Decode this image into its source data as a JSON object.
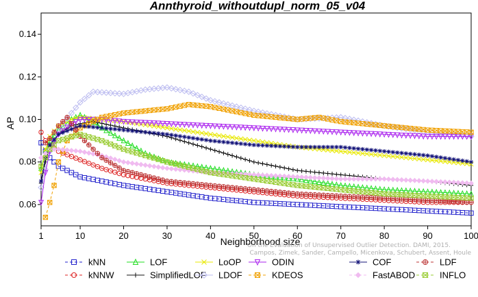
{
  "chart_data": {
    "type": "line",
    "title": "Annthyroid_withoutdupl_norm_05_v04",
    "xlabel": "Neighborhood size",
    "ylabel": "AP",
    "xlim": [
      1,
      100
    ],
    "ylim": [
      0.05,
      0.15
    ],
    "xticks": [
      1,
      10,
      20,
      30,
      40,
      50,
      60,
      70,
      80,
      90,
      100
    ],
    "yticks": [
      0.06,
      0.08,
      0.1,
      0.12,
      0.14
    ],
    "ytick_labels": [
      "0.06",
      "0.08",
      "0.10",
      "0.12",
      "0.14"
    ],
    "watermark": [
      "Campos, Zimek, Sander, Campello, Micenkova, Schubert, Assent, Houle",
      "On the Evaluation of Unsupervised Outlier Detection. DAMI, 2015."
    ],
    "series": [
      {
        "name": "kNN",
        "color": "#2222cc",
        "marker": "square",
        "dash": "4,3",
        "points": [
          [
            1,
            0.089
          ],
          [
            2,
            0.085
          ],
          [
            3,
            0.082
          ],
          [
            5,
            0.078
          ],
          [
            10,
            0.073
          ],
          [
            15,
            0.071
          ],
          [
            20,
            0.069
          ],
          [
            30,
            0.066
          ],
          [
            40,
            0.063
          ],
          [
            50,
            0.061
          ],
          [
            60,
            0.06
          ],
          [
            70,
            0.059
          ],
          [
            80,
            0.058
          ],
          [
            90,
            0.057
          ],
          [
            100,
            0.056
          ]
        ]
      },
      {
        "name": "kNNW",
        "color": "#dd2222",
        "marker": "circle",
        "dash": "4,3",
        "points": [
          [
            1,
            0.094
          ],
          [
            2,
            0.09
          ],
          [
            3,
            0.088
          ],
          [
            5,
            0.085
          ],
          [
            10,
            0.081
          ],
          [
            15,
            0.077
          ],
          [
            20,
            0.074
          ],
          [
            30,
            0.07
          ],
          [
            40,
            0.068
          ],
          [
            50,
            0.066
          ],
          [
            60,
            0.064
          ],
          [
            70,
            0.063
          ],
          [
            80,
            0.062
          ],
          [
            90,
            0.061
          ],
          [
            100,
            0.061
          ]
        ]
      },
      {
        "name": "LOF",
        "color": "#22dd22",
        "marker": "triangle",
        "dash": "",
        "points": [
          [
            1,
            0.077
          ],
          [
            2,
            0.085
          ],
          [
            3,
            0.09
          ],
          [
            5,
            0.095
          ],
          [
            8,
            0.1
          ],
          [
            10,
            0.102
          ],
          [
            12,
            0.1
          ],
          [
            15,
            0.096
          ],
          [
            20,
            0.09
          ],
          [
            25,
            0.084
          ],
          [
            30,
            0.08
          ],
          [
            40,
            0.077
          ],
          [
            50,
            0.074
          ],
          [
            60,
            0.072
          ],
          [
            70,
            0.069
          ],
          [
            80,
            0.067
          ],
          [
            90,
            0.066
          ],
          [
            100,
            0.065
          ]
        ]
      },
      {
        "name": "SimplifiedLOF",
        "color": "#111111",
        "marker": "plus",
        "dash": "",
        "points": [
          [
            1,
            0.07
          ],
          [
            2,
            0.08
          ],
          [
            3,
            0.087
          ],
          [
            5,
            0.093
          ],
          [
            8,
            0.097
          ],
          [
            10,
            0.098
          ],
          [
            13,
            0.099
          ],
          [
            20,
            0.096
          ],
          [
            30,
            0.092
          ],
          [
            40,
            0.086
          ],
          [
            50,
            0.08
          ],
          [
            60,
            0.076
          ],
          [
            70,
            0.074
          ],
          [
            80,
            0.072
          ],
          [
            90,
            0.071
          ],
          [
            100,
            0.069
          ]
        ]
      },
      {
        "name": "LoOP",
        "color": "#e8e800",
        "marker": "cross",
        "dash": "",
        "points": [
          [
            1,
            0.075
          ],
          [
            2,
            0.086
          ],
          [
            3,
            0.092
          ],
          [
            5,
            0.097
          ],
          [
            8,
            0.1
          ],
          [
            10,
            0.101
          ],
          [
            15,
            0.1
          ],
          [
            20,
            0.099
          ],
          [
            30,
            0.096
          ],
          [
            40,
            0.093
          ],
          [
            50,
            0.09
          ],
          [
            60,
            0.087
          ],
          [
            70,
            0.085
          ],
          [
            80,
            0.083
          ],
          [
            90,
            0.081
          ],
          [
            100,
            0.079
          ]
        ]
      },
      {
        "name": "LDOF",
        "color": "#bbbbf0",
        "marker": "diamond",
        "dash": "",
        "points": [
          [
            1,
            0.068
          ],
          [
            3,
            0.085
          ],
          [
            5,
            0.095
          ],
          [
            8,
            0.103
          ],
          [
            10,
            0.108
          ],
          [
            13,
            0.113
          ],
          [
            20,
            0.112
          ],
          [
            25,
            0.114
          ],
          [
            30,
            0.115
          ],
          [
            35,
            0.113
          ],
          [
            40,
            0.109
          ],
          [
            50,
            0.104
          ],
          [
            60,
            0.1
          ],
          [
            70,
            0.101
          ],
          [
            80,
            0.097
          ],
          [
            90,
            0.094
          ],
          [
            100,
            0.092
          ]
        ]
      },
      {
        "name": "ODIN",
        "color": "#aa22ee",
        "marker": "triangle-down",
        "dash": "",
        "points": [
          [
            1,
            0.061
          ],
          [
            2,
            0.075
          ],
          [
            3,
            0.085
          ],
          [
            5,
            0.093
          ],
          [
            8,
            0.098
          ],
          [
            10,
            0.1
          ],
          [
            15,
            0.1
          ],
          [
            20,
            0.099
          ],
          [
            30,
            0.098
          ],
          [
            40,
            0.097
          ],
          [
            50,
            0.096
          ],
          [
            60,
            0.095
          ],
          [
            70,
            0.094
          ],
          [
            80,
            0.093
          ],
          [
            90,
            0.092
          ],
          [
            100,
            0.092
          ]
        ]
      },
      {
        "name": "KDEOS",
        "color": "#f0a000",
        "marker": "boxx",
        "dash": "4,3",
        "points": [
          [
            2,
            0.054
          ],
          [
            3,
            0.061
          ],
          [
            4,
            0.069
          ],
          [
            5,
            0.08
          ],
          [
            7,
            0.09
          ],
          [
            10,
            0.096
          ],
          [
            15,
            0.101
          ],
          [
            20,
            0.103
          ],
          [
            25,
            0.104
          ],
          [
            30,
            0.105
          ],
          [
            35,
            0.107
          ],
          [
            40,
            0.106
          ],
          [
            45,
            0.104
          ],
          [
            50,
            0.102
          ],
          [
            60,
            0.1
          ],
          [
            65,
            0.101
          ],
          [
            70,
            0.099
          ],
          [
            80,
            0.097
          ],
          [
            90,
            0.095
          ],
          [
            100,
            0.094
          ]
        ]
      },
      {
        "name": "COF",
        "color": "#111177",
        "marker": "star",
        "dash": "",
        "points": [
          [
            1,
            0.071
          ],
          [
            2,
            0.082
          ],
          [
            3,
            0.088
          ],
          [
            5,
            0.093
          ],
          [
            10,
            0.097
          ],
          [
            15,
            0.096
          ],
          [
            20,
            0.095
          ],
          [
            30,
            0.093
          ],
          [
            40,
            0.09
          ],
          [
            50,
            0.088
          ],
          [
            60,
            0.087
          ],
          [
            70,
            0.087
          ],
          [
            80,
            0.085
          ],
          [
            90,
            0.083
          ],
          [
            100,
            0.08
          ]
        ]
      },
      {
        "name": "FastABOD",
        "color": "#f0bbf0",
        "marker": "diamond-solid",
        "dash": "4,3",
        "points": [
          [
            1,
            0.082
          ],
          [
            3,
            0.086
          ],
          [
            5,
            0.086
          ],
          [
            10,
            0.085
          ],
          [
            15,
            0.083
          ],
          [
            20,
            0.08
          ],
          [
            30,
            0.077
          ],
          [
            40,
            0.075
          ],
          [
            50,
            0.074
          ],
          [
            60,
            0.073
          ],
          [
            70,
            0.072
          ],
          [
            80,
            0.072
          ],
          [
            90,
            0.071
          ],
          [
            100,
            0.07
          ]
        ]
      },
      {
        "name": "LDF",
        "color": "#bb3333",
        "marker": "circle-plus",
        "dash": "4,3",
        "points": [
          [
            2,
            0.089
          ],
          [
            3,
            0.091
          ],
          [
            5,
            0.097
          ],
          [
            7,
            0.101
          ],
          [
            10,
            0.092
          ],
          [
            15,
            0.082
          ],
          [
            20,
            0.076
          ],
          [
            30,
            0.071
          ],
          [
            40,
            0.069
          ],
          [
            50,
            0.067
          ],
          [
            60,
            0.065
          ],
          [
            70,
            0.064
          ],
          [
            80,
            0.063
          ],
          [
            90,
            0.062
          ],
          [
            100,
            0.061
          ]
        ]
      },
      {
        "name": "INFLO",
        "color": "#99cc33",
        "marker": "hourglass",
        "dash": "4,3",
        "points": [
          [
            1,
            0.078
          ],
          [
            3,
            0.086
          ],
          [
            5,
            0.09
          ],
          [
            10,
            0.093
          ],
          [
            15,
            0.09
          ],
          [
            20,
            0.086
          ],
          [
            30,
            0.08
          ],
          [
            40,
            0.075
          ],
          [
            50,
            0.072
          ],
          [
            60,
            0.069
          ],
          [
            70,
            0.067
          ],
          [
            80,
            0.065
          ],
          [
            90,
            0.064
          ],
          [
            100,
            0.063
          ]
        ]
      }
    ]
  }
}
